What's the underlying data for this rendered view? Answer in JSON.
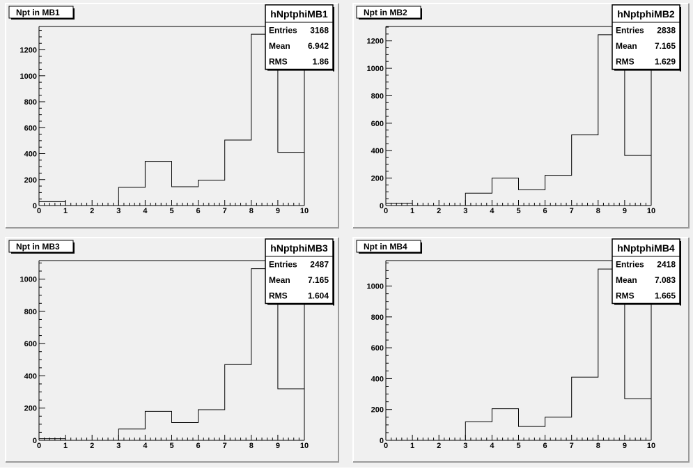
{
  "chart_data": [
    {
      "type": "histogram",
      "title": "Npt in MB1",
      "stats_name": "hNptphiMB1",
      "stats": [
        {
          "label": "Entries",
          "value": "3168"
        },
        {
          "label": "Mean",
          "value": "6.942"
        },
        {
          "label": "RMS",
          "value": "1.86"
        }
      ],
      "bin_edges": [
        0,
        1,
        2,
        3,
        4,
        5,
        6,
        7,
        8,
        9,
        10
      ],
      "values": [
        30,
        0,
        0,
        140,
        340,
        145,
        195,
        505,
        1320,
        410
      ],
      "overflow_value": 1380,
      "xlim": [
        0,
        10
      ],
      "ylim": [
        0,
        1380
      ],
      "x_ticks": [
        0,
        1,
        2,
        3,
        4,
        5,
        6,
        7,
        8,
        9,
        10
      ],
      "y_ticks": [
        0,
        200,
        400,
        600,
        800,
        1000,
        1200
      ]
    },
    {
      "type": "histogram",
      "title": "Npt in MB2",
      "stats_name": "hNptphiMB2",
      "stats": [
        {
          "label": "Entries",
          "value": "2838"
        },
        {
          "label": "Mean",
          "value": "7.165"
        },
        {
          "label": "RMS",
          "value": "1.629"
        }
      ],
      "bin_edges": [
        0,
        1,
        2,
        3,
        4,
        5,
        6,
        7,
        8,
        9,
        10
      ],
      "values": [
        15,
        0,
        0,
        90,
        200,
        115,
        220,
        515,
        1245,
        365
      ],
      "overflow_value": 1305,
      "xlim": [
        0,
        10
      ],
      "ylim": [
        0,
        1305
      ],
      "x_ticks": [
        0,
        1,
        2,
        3,
        4,
        5,
        6,
        7,
        8,
        9,
        10
      ],
      "y_ticks": [
        0,
        200,
        400,
        600,
        800,
        1000,
        1200
      ]
    },
    {
      "type": "histogram",
      "title": "Npt in MB3",
      "stats_name": "hNptphiMB3",
      "stats": [
        {
          "label": "Entries",
          "value": "2487"
        },
        {
          "label": "Mean",
          "value": "7.165"
        },
        {
          "label": "RMS",
          "value": "1.604"
        }
      ],
      "bin_edges": [
        0,
        1,
        2,
        3,
        4,
        5,
        6,
        7,
        8,
        9,
        10
      ],
      "values": [
        10,
        0,
        0,
        70,
        180,
        110,
        190,
        470,
        1065,
        320
      ],
      "overflow_value": 1115,
      "xlim": [
        0,
        10
      ],
      "ylim": [
        0,
        1115
      ],
      "x_ticks": [
        0,
        1,
        2,
        3,
        4,
        5,
        6,
        7,
        8,
        9,
        10
      ],
      "y_ticks": [
        0,
        200,
        400,
        600,
        800,
        1000
      ]
    },
    {
      "type": "histogram",
      "title": "Npt in MB4",
      "stats_name": "hNptphiMB4",
      "stats": [
        {
          "label": "Entries",
          "value": "2418"
        },
        {
          "label": "Mean",
          "value": "7.083"
        },
        {
          "label": "RMS",
          "value": "1.665"
        }
      ],
      "bin_edges": [
        0,
        1,
        2,
        3,
        4,
        5,
        6,
        7,
        8,
        9,
        10
      ],
      "values": [
        0,
        0,
        0,
        120,
        205,
        90,
        150,
        410,
        1110,
        270
      ],
      "overflow_value": 1165,
      "xlim": [
        0,
        10
      ],
      "ylim": [
        0,
        1165
      ],
      "x_ticks": [
        0,
        1,
        2,
        3,
        4,
        5,
        6,
        7,
        8,
        9,
        10
      ],
      "y_ticks": [
        0,
        200,
        400,
        600,
        800,
        1000
      ]
    }
  ]
}
